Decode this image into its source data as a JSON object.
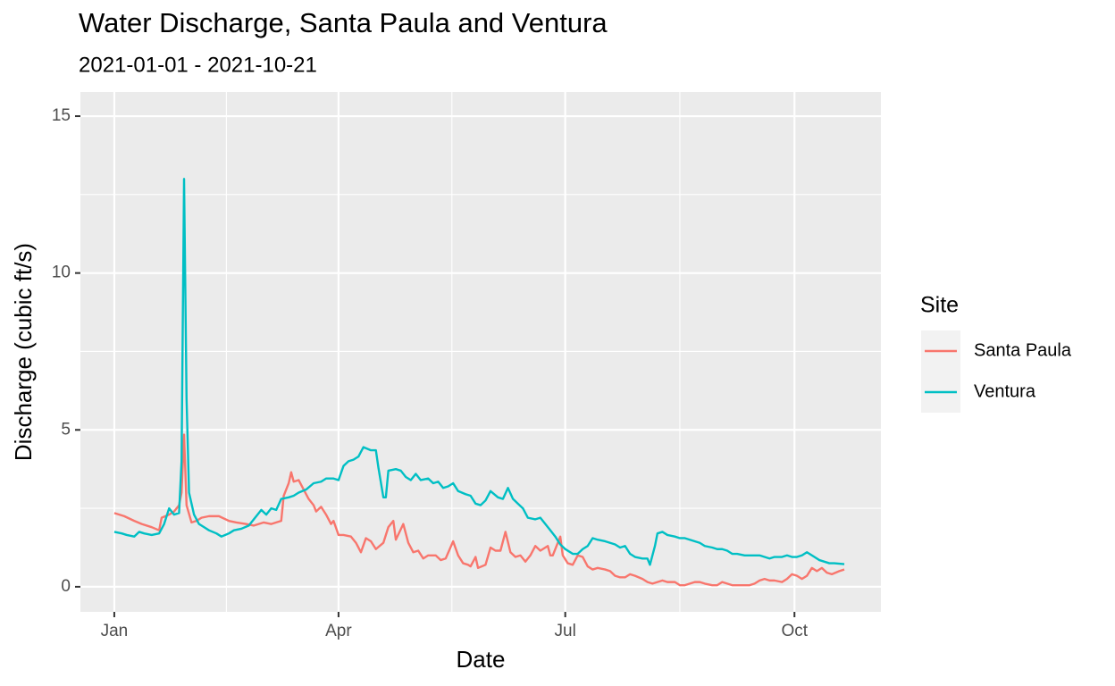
{
  "chart_data": {
    "type": "line",
    "title": "Water Discharge, Santa Paula and Ventura",
    "subtitle": "2021-01-01 - 2021-10-21",
    "x_label": "Date",
    "y_label": "Discharge (cubic ft/s)",
    "legend_title": "Site",
    "legend_position": "right",
    "grid": true,
    "xlim": [
      -13.6,
      307.7
    ],
    "ylim": [
      -0.8,
      15.77
    ],
    "xticks": [
      {
        "value": 0,
        "label": "Jan"
      },
      {
        "value": 90,
        "label": "Apr"
      },
      {
        "value": 181,
        "label": "Jul"
      },
      {
        "value": 273,
        "label": "Oct"
      }
    ],
    "xminorticks": [
      45,
      135.5,
      227
    ],
    "yticks": [
      0,
      5,
      10,
      15
    ],
    "yminorticks": [
      2.5,
      7.5,
      12.5
    ],
    "series": [
      {
        "name": "Santa Paula",
        "color": "#F8766D",
        "x": [
          0,
          4,
          8,
          11,
          15,
          18,
          19,
          22,
          24,
          26,
          27,
          28,
          29,
          31,
          33,
          35,
          38,
          42,
          46,
          49,
          53,
          56,
          60,
          63,
          67,
          68,
          70,
          71,
          72,
          74,
          76,
          78,
          80,
          81,
          83,
          85,
          87,
          88,
          90,
          92,
          95,
          97,
          99,
          101,
          103,
          105,
          108,
          110,
          112,
          113,
          116,
          118,
          120,
          122,
          124,
          126,
          129,
          131,
          133,
          136,
          138,
          140,
          142,
          143,
          145,
          146,
          149,
          151,
          153,
          155,
          157,
          159,
          161,
          163,
          165,
          167,
          169,
          171,
          174,
          175,
          176,
          179,
          180,
          182,
          184,
          186,
          188,
          190,
          192,
          194,
          197,
          199,
          201,
          203,
          205,
          207,
          209,
          212,
          214,
          216,
          218,
          220,
          222,
          225,
          227,
          229,
          231,
          233,
          235,
          237,
          240,
          242,
          244,
          246,
          248,
          250,
          253,
          255,
          257,
          259,
          261,
          263,
          265,
          268,
          270,
          272,
          274,
          276,
          278,
          280,
          282,
          284,
          286,
          288,
          291,
          293
        ],
        "values": [
          2.35,
          2.25,
          2.1,
          2.0,
          1.9,
          1.8,
          2.2,
          2.3,
          2.4,
          2.6,
          3.0,
          4.85,
          2.6,
          2.05,
          2.1,
          2.2,
          2.25,
          2.25,
          2.1,
          2.05,
          2.0,
          1.95,
          2.05,
          2.0,
          2.1,
          2.9,
          3.3,
          3.65,
          3.35,
          3.4,
          3.1,
          2.8,
          2.6,
          2.4,
          2.55,
          2.3,
          2.0,
          2.1,
          1.65,
          1.65,
          1.6,
          1.4,
          1.1,
          1.55,
          1.45,
          1.2,
          1.4,
          1.9,
          2.1,
          1.5,
          2.0,
          1.4,
          1.1,
          1.15,
          0.9,
          1.0,
          1.0,
          0.85,
          0.9,
          1.45,
          1.0,
          0.75,
          0.7,
          0.65,
          0.95,
          0.6,
          0.7,
          1.25,
          1.15,
          1.15,
          1.75,
          1.1,
          0.95,
          1.0,
          0.8,
          1.0,
          1.3,
          1.15,
          1.3,
          1.0,
          1.0,
          1.6,
          1.0,
          0.75,
          0.7,
          1.0,
          0.95,
          0.65,
          0.55,
          0.6,
          0.55,
          0.5,
          0.35,
          0.3,
          0.3,
          0.4,
          0.35,
          0.25,
          0.15,
          0.1,
          0.15,
          0.2,
          0.15,
          0.15,
          0.05,
          0.05,
          0.1,
          0.15,
          0.15,
          0.1,
          0.05,
          0.05,
          0.15,
          0.1,
          0.05,
          0.05,
          0.05,
          0.05,
          0.1,
          0.2,
          0.25,
          0.2,
          0.2,
          0.15,
          0.25,
          0.4,
          0.35,
          0.25,
          0.35,
          0.6,
          0.5,
          0.6,
          0.45,
          0.4,
          0.5,
          0.55
        ]
      },
      {
        "name": "Ventura",
        "color": "#00BFC4",
        "x": [
          0,
          3,
          5,
          8,
          10,
          12,
          15,
          18,
          20,
          22,
          24,
          26,
          27,
          28,
          29,
          30,
          32,
          34,
          36,
          38,
          41,
          43,
          46,
          48,
          51,
          54,
          56,
          59,
          61,
          63,
          65,
          67,
          70,
          72,
          74,
          77,
          80,
          83,
          85,
          88,
          90,
          92,
          94,
          96,
          98,
          100,
          103,
          105,
          106,
          108,
          109,
          110,
          113,
          115,
          117,
          119,
          121,
          123,
          126,
          128,
          130,
          132,
          134,
          136,
          138,
          141,
          143,
          145,
          147,
          149,
          151,
          154,
          156,
          158,
          160,
          162,
          164,
          166,
          169,
          171,
          173,
          175,
          177,
          179,
          181,
          184,
          186,
          188,
          190,
          192,
          194,
          197,
          199,
          201,
          203,
          205,
          207,
          209,
          212,
          214,
          215,
          217,
          218,
          220,
          222,
          225,
          227,
          229,
          231,
          233,
          235,
          237,
          240,
          242,
          244,
          246,
          248,
          250,
          253,
          255,
          257,
          259,
          261,
          263,
          265,
          268,
          270,
          272,
          274,
          276,
          278,
          281,
          283,
          285,
          287,
          289,
          293
        ],
        "values": [
          1.75,
          1.7,
          1.65,
          1.6,
          1.75,
          1.7,
          1.65,
          1.7,
          2.0,
          2.5,
          2.3,
          2.35,
          4.0,
          13.0,
          6.0,
          3.0,
          2.3,
          2.0,
          1.9,
          1.8,
          1.7,
          1.6,
          1.7,
          1.8,
          1.85,
          1.95,
          2.15,
          2.45,
          2.3,
          2.5,
          2.45,
          2.8,
          2.85,
          2.9,
          3.0,
          3.1,
          3.3,
          3.35,
          3.45,
          3.45,
          3.4,
          3.85,
          4.0,
          4.05,
          4.15,
          4.45,
          4.35,
          4.35,
          3.8,
          2.85,
          2.85,
          3.7,
          3.75,
          3.7,
          3.5,
          3.4,
          3.6,
          3.4,
          3.45,
          3.3,
          3.35,
          3.15,
          3.2,
          3.3,
          3.05,
          2.95,
          2.9,
          2.65,
          2.6,
          2.75,
          3.05,
          2.85,
          2.8,
          3.15,
          2.8,
          2.65,
          2.5,
          2.2,
          2.15,
          2.2,
          2.0,
          1.8,
          1.6,
          1.35,
          1.2,
          1.05,
          1.05,
          1.2,
          1.3,
          1.55,
          1.5,
          1.45,
          1.4,
          1.35,
          1.25,
          1.3,
          1.05,
          0.95,
          0.9,
          0.9,
          0.7,
          1.3,
          1.7,
          1.75,
          1.65,
          1.6,
          1.55,
          1.55,
          1.5,
          1.45,
          1.4,
          1.3,
          1.25,
          1.2,
          1.2,
          1.15,
          1.05,
          1.05,
          1.0,
          1.0,
          1.0,
          1.0,
          0.95,
          0.9,
          0.95,
          0.95,
          1.0,
          0.95,
          0.95,
          1.0,
          1.1,
          0.95,
          0.85,
          0.8,
          0.75,
          0.75,
          0.72
        ]
      }
    ]
  }
}
